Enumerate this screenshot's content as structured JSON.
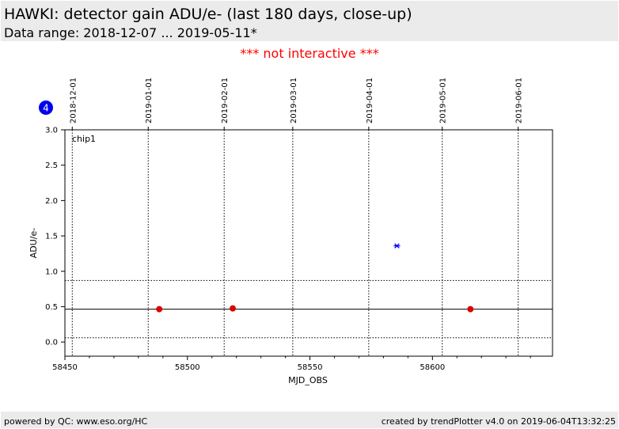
{
  "header": {
    "title": "HAWKI: detector gain ADU/e- (last 180 days, close-up)",
    "subtitle": "Data range: 2018-12-07 ... 2019-05-11*"
  },
  "notice": "*** not interactive ***",
  "badge": {
    "count": "4",
    "color": "#0000ee"
  },
  "footer": {
    "left": "powered by QC: www.eso.org/HC",
    "right": "created by trendPlotter v4.0 on 2019-06-04T13:32:25"
  },
  "colors": {
    "points": "#dd0000",
    "outlier": "#0000ff",
    "title_bar": "#ebebeb",
    "notice": "#ff0000"
  },
  "chart_data": {
    "type": "scatter",
    "panel_label": "chip1",
    "xlabel": "MJD_OBS",
    "ylabel": "ADU/e-",
    "xlim": [
      58450,
      58649
    ],
    "ylim": [
      -0.2,
      3.0
    ],
    "x_ticks": [
      58450,
      58500,
      58550,
      58600
    ],
    "y_ticks": [
      0.0,
      0.5,
      1.0,
      1.5,
      2.0,
      2.5,
      3.0
    ],
    "y_tick_labels": [
      "0.0",
      "0.5",
      "1.0",
      "1.5",
      "2.0",
      "2.5",
      "3.0"
    ],
    "date_ticks": [
      {
        "mjd": 58453,
        "label": "2018-12-01"
      },
      {
        "mjd": 58484,
        "label": "2019-01-01"
      },
      {
        "mjd": 58515,
        "label": "2019-02-01"
      },
      {
        "mjd": 58543,
        "label": "2019-03-01"
      },
      {
        "mjd": 58574,
        "label": "2019-04-01"
      },
      {
        "mjd": 58604,
        "label": "2019-05-01"
      },
      {
        "mjd": 58635,
        "label": "2019-06-01"
      }
    ],
    "reference_line": 0.465,
    "threshold_lines": [
      0.06,
      0.87
    ],
    "points": [
      {
        "x": 58488.5,
        "y": 0.465
      },
      {
        "x": 58518.5,
        "y": 0.475
      },
      {
        "x": 58615.5,
        "y": 0.465
      }
    ],
    "outliers": [
      {
        "x": 58585.5,
        "y": 1.36
      }
    ]
  }
}
